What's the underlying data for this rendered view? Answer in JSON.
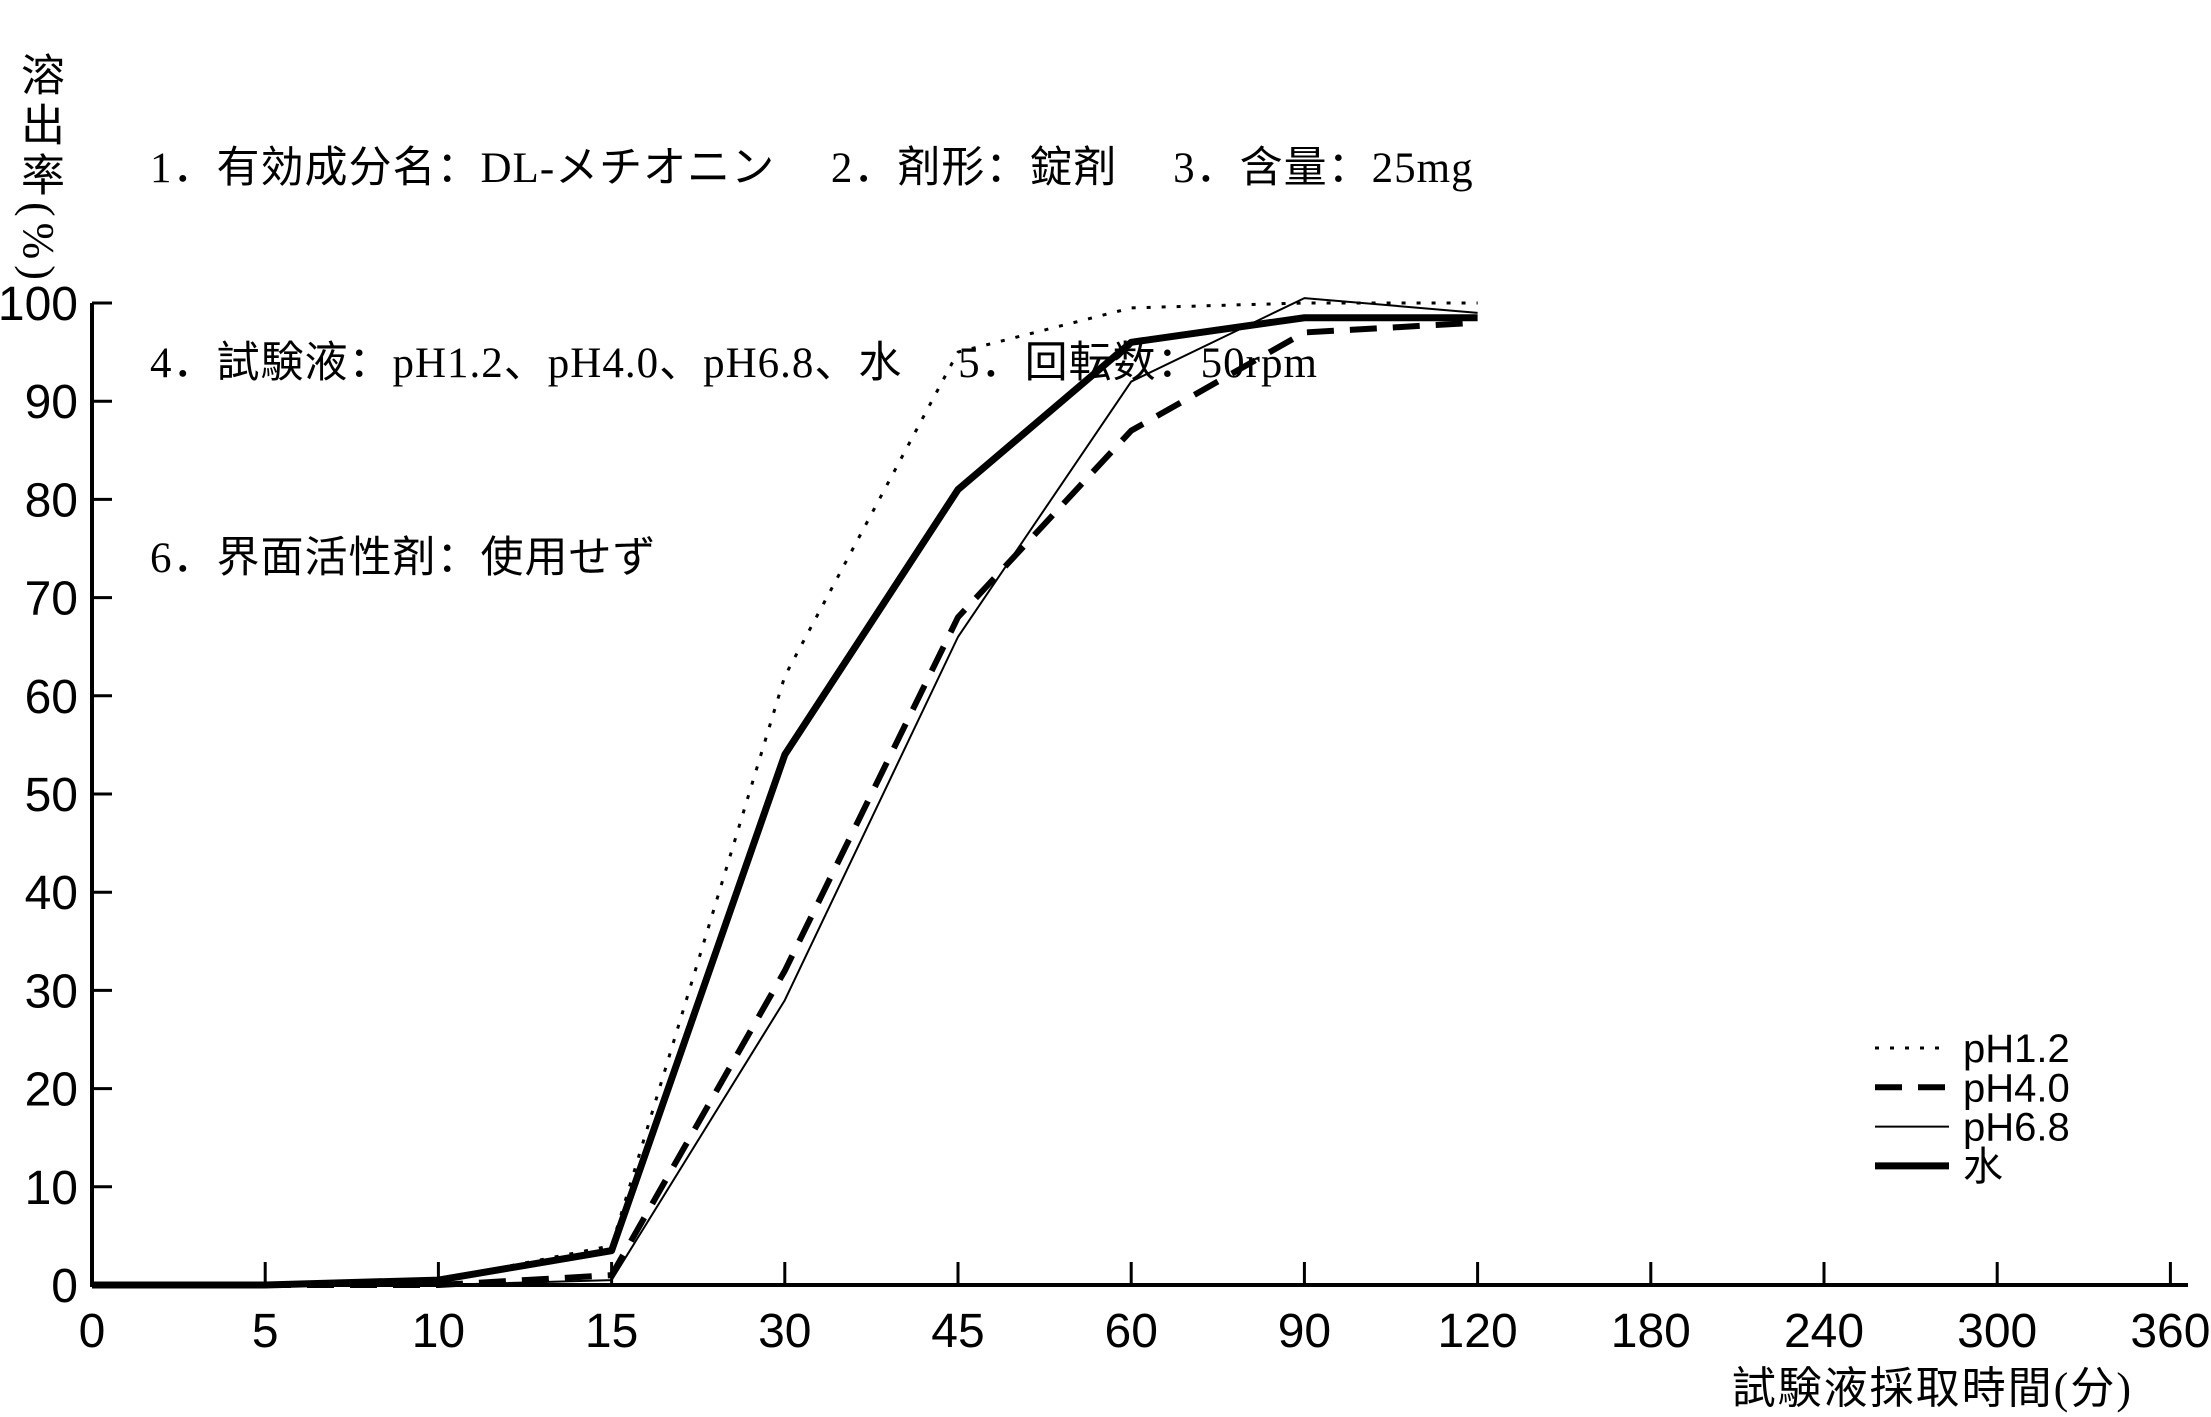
{
  "header": {
    "line1": "1．有効成分名：DL-メチオニン　 2．剤形：錠剤 　3．含量：25mg",
    "line2": "4．試験液：pH1.2、pH4.0、pH6.8、水 　5．回転数：50rpm",
    "line3": "6．界面活性剤：使用せず"
  },
  "chart_data": {
    "type": "line",
    "title": "",
    "xlabel": "試験液採取時間(分)",
    "ylabel": "溶出率(%)",
    "x_scale": "categorical",
    "x_categories": [
      0,
      5,
      10,
      15,
      30,
      45,
      60,
      90,
      120,
      180,
      240,
      300,
      360
    ],
    "ylim": [
      0,
      100
    ],
    "y_ticks": [
      0,
      10,
      20,
      30,
      40,
      50,
      60,
      70,
      80,
      90,
      100
    ],
    "grid": false,
    "legend_position": "right-middle",
    "series": [
      {
        "name": "pH1.2",
        "line_style": "dotted",
        "x": [
          0,
          5,
          10,
          15,
          30,
          45,
          60,
          90,
          120
        ],
        "values": [
          0,
          0,
          0.5,
          4,
          62,
          95,
          99.5,
          100,
          100
        ]
      },
      {
        "name": "pH4.0",
        "line_style": "dashed",
        "x": [
          0,
          5,
          10,
          15,
          30,
          45,
          60,
          90,
          120
        ],
        "values": [
          0,
          0,
          0,
          1,
          32,
          68,
          87,
          97,
          98
        ]
      },
      {
        "name": "pH6.8",
        "line_style": "solid-thin",
        "x": [
          0,
          5,
          10,
          15,
          30,
          45,
          60,
          90,
          120
        ],
        "values": [
          0,
          0,
          0,
          0.5,
          29,
          66,
          92,
          100.5,
          99
        ]
      },
      {
        "name": "水",
        "line_style": "solid-thick",
        "x": [
          0,
          5,
          10,
          15,
          30,
          45,
          60,
          90,
          120
        ],
        "values": [
          0,
          0,
          0.5,
          3.5,
          54,
          81,
          96,
          98.5,
          98.5
        ]
      }
    ]
  },
  "colors": {
    "ink": "#000000",
    "background": "#ffffff"
  }
}
